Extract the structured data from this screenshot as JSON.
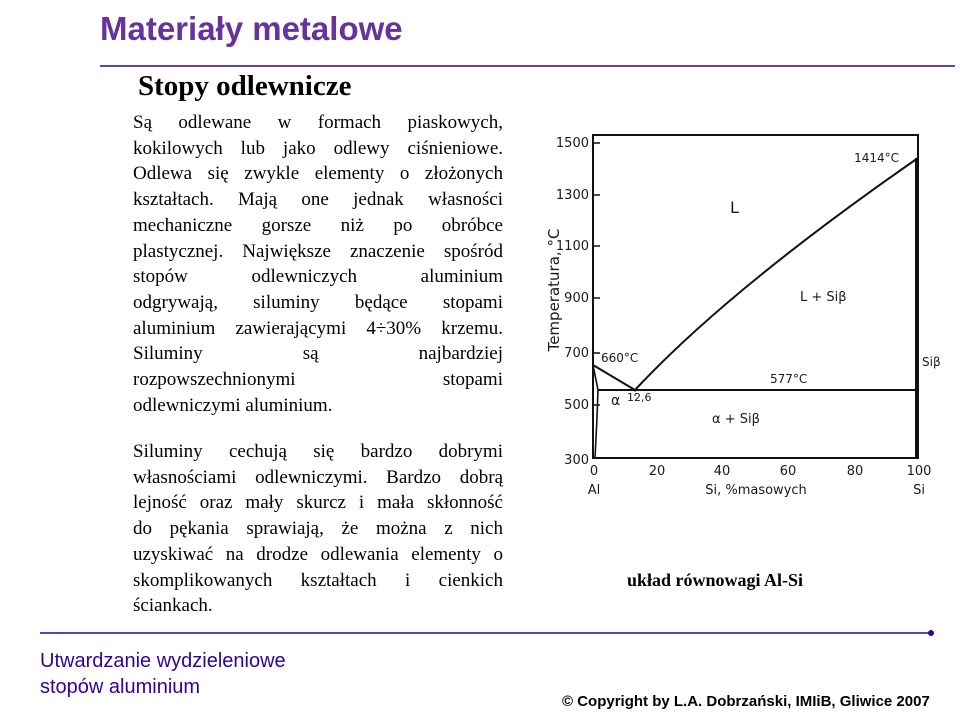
{
  "header": {
    "title": "Materiały metalowe",
    "subtitle": "Stopy odlewnicze"
  },
  "body": {
    "paragraph1_lines": [
      "Są odlewane w formach piaskowych,",
      "kokilowych lub jako odlewy ciśnieniowe.",
      "Odlewa się zwykle elementy o złożonych",
      "kształtach. Mają one jednak własności",
      "mechaniczne gorsze niż po obróbce",
      "plastycznej. Największe znaczenie spośród",
      "stopów odlewniczych aluminium",
      "odgrywają, siluminy będące stopami",
      "aluminium zawierającymi 4÷30% krzemu.",
      "Siluminy są najbardziej",
      "rozpowszechnionymi stopami",
      "odlewniczymi aluminium."
    ],
    "paragraph2_lines": [
      "Siluminy cechują się bardzo dobrymi",
      "własnościami odlewniczymi. Bardzo dobrą",
      "lejność oraz mały skurcz i mała skłonność",
      "do pękania sprawiają, że można z nich",
      "uzyskiwać na drodze odlewania elementy o",
      "skomplikowanych kształtach i cienkich",
      "ściankach."
    ]
  },
  "diagram": {
    "y_axis_label": "Temperatura, °C",
    "x_axis_label": "Si, %masowych",
    "y_ticks": [
      "1500",
      "1300",
      "1100",
      "900",
      "700",
      "500",
      "300"
    ],
    "x_ticks": [
      "0",
      "20",
      "40",
      "60",
      "80",
      "100"
    ],
    "x_end_labels": [
      "Al",
      "Si"
    ],
    "annotations": {
      "si_melting": "1414°C",
      "al_melting": "660°C",
      "eutectic_temp": "577°C",
      "eutectic_comp": "12,6"
    },
    "phases": {
      "liquid": "L",
      "liquid_si": "L + Siβ",
      "alpha": "α",
      "alpha_si": "α + Siβ",
      "si_phase": "Siβ"
    },
    "caption": "układ równowagi Al-Si"
  },
  "footer": {
    "title_line1": "Utwardzanie wydzieleniowe",
    "title_line2": "stopów aluminium",
    "copyright": "© Copyright by L.A. Dobrzański, IMIiB, Gliwice 2007"
  },
  "colors": {
    "title": "#663399",
    "rule": "#330099",
    "footer_text": "#330099"
  }
}
